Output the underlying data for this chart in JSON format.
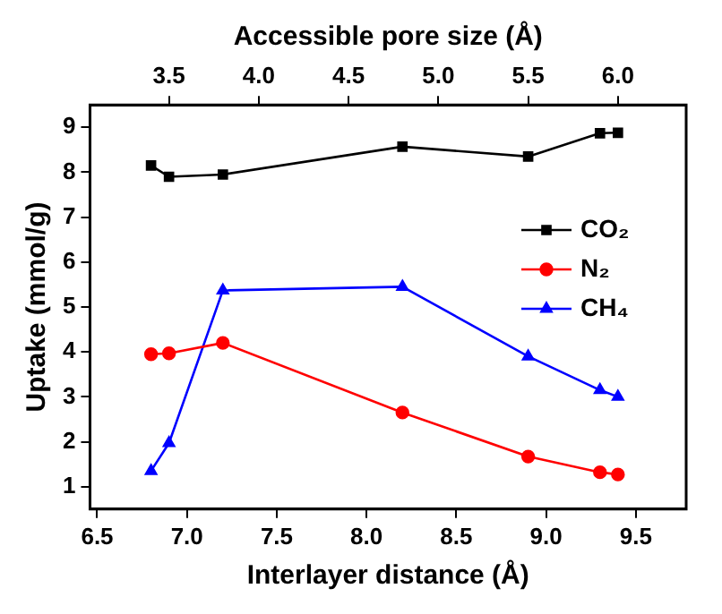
{
  "chart_data": {
    "type": "line",
    "xlabel": "Interlayer distance (Å)",
    "x2label": "Accessible pore size (Å)",
    "ylabel": "Uptake (mmol/g)",
    "x": [
      6.8,
      6.9,
      7.2,
      8.2,
      8.9,
      9.3,
      9.4
    ],
    "xlim": [
      6.46,
      9.78
    ],
    "xticks": [
      6.5,
      {
        "value": 7,
        "label": "7.0"
      },
      7.5,
      {
        "value": 8,
        "label": "8.0"
      },
      8.5,
      {
        "value": 9,
        "label": "9.0"
      },
      9.5
    ],
    "x2lim": [
      3.06,
      6.38
    ],
    "x2ticks": [
      3.5,
      {
        "value": 4,
        "label": "4.0"
      },
      4.5,
      {
        "value": 5,
        "label": "5.0"
      },
      5.5,
      {
        "value": 6,
        "label": "6.0"
      }
    ],
    "ylim": [
      0.5,
      9.5
    ],
    "yticks": [
      1,
      2,
      3,
      4,
      5,
      6,
      7,
      8,
      9
    ],
    "series": [
      {
        "name": "CO₂",
        "color": "#000000",
        "marker": "square",
        "values": [
          8.15,
          7.9,
          7.95,
          8.57,
          8.35,
          8.87,
          8.88
        ]
      },
      {
        "name": "N₂",
        "color": "#ff0000",
        "marker": "circle",
        "values": [
          3.95,
          3.97,
          4.2,
          2.65,
          1.67,
          1.32,
          1.27
        ]
      },
      {
        "name": "CH₄",
        "color": "#0000ff",
        "marker": "triangle",
        "values": [
          1.35,
          1.97,
          5.37,
          5.45,
          3.9,
          3.15,
          3.0
        ]
      }
    ],
    "legend": "right",
    "grid": false
  }
}
